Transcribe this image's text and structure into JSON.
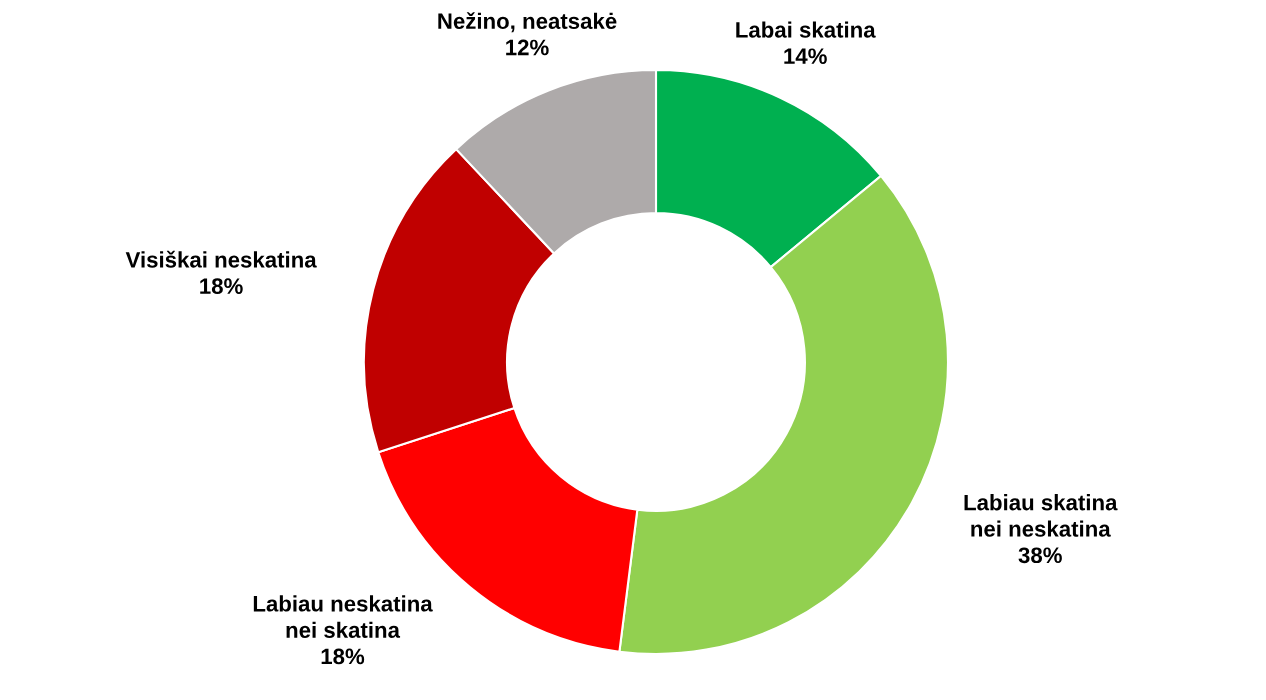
{
  "chart_data": {
    "type": "donut",
    "categories": [
      "Labai skatina",
      "Labiau skatina nei neskatina",
      "Labiau neskatina nei skatina",
      "Visiškai neskatina",
      "Nežino, neatsakė"
    ],
    "values": [
      14,
      38,
      18,
      18,
      12
    ],
    "value_labels": [
      "14%",
      "38%",
      "18%",
      "18%",
      "12%"
    ],
    "colors": [
      "#00b050",
      "#92d050",
      "#ff0000",
      "#c00000",
      "#aeaaaa"
    ],
    "legend": false
  }
}
